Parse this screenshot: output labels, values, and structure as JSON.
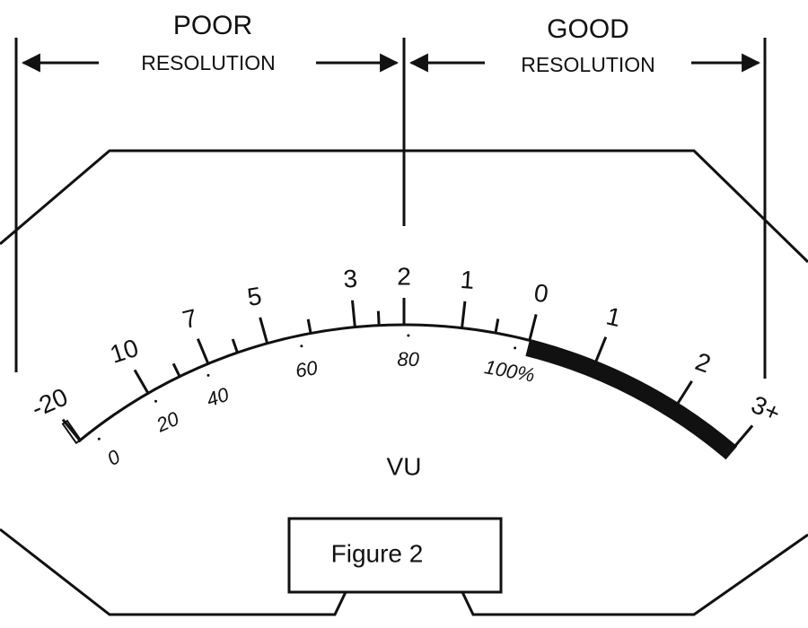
{
  "header": {
    "poor": {
      "title": "POOR",
      "subtitle": "RESOLUTION"
    },
    "good": {
      "title": "GOOD",
      "subtitle": "RESOLUTION"
    }
  },
  "meter": {
    "vu_labels": [
      "-20",
      "10",
      "7",
      "5",
      "3",
      "2",
      "1",
      "0",
      "1",
      "2",
      "3+"
    ],
    "percent_labels": [
      "0",
      "20",
      "40",
      "60",
      "80",
      "100%"
    ],
    "unit": "VU"
  },
  "caption": "Figure 2"
}
